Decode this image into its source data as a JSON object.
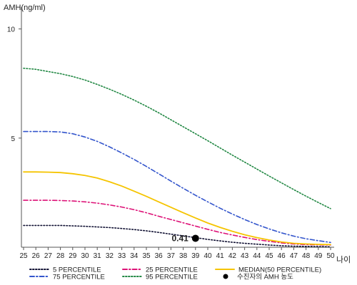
{
  "chart_data": {
    "type": "line",
    "ylabel": "AMH(ng/ml)",
    "xlabel": "나이",
    "x": [
      25,
      26,
      27,
      28,
      29,
      30,
      31,
      32,
      33,
      34,
      35,
      36,
      37,
      38,
      39,
      40,
      41,
      42,
      43,
      44,
      45,
      46,
      47,
      48,
      49,
      50
    ],
    "xlim": [
      25,
      50
    ],
    "ylim": [
      0,
      11
    ],
    "yticks": [
      5,
      10
    ],
    "grid": false,
    "legend_position": "bottom",
    "series": [
      {
        "name": "5 PERCENTILE",
        "color": "#111133",
        "dash": "dotted",
        "values": [
          1.0,
          1.0,
          1.0,
          1.0,
          0.98,
          0.96,
          0.93,
          0.9,
          0.86,
          0.81,
          0.75,
          0.68,
          0.6,
          0.52,
          0.44,
          0.36,
          0.29,
          0.23,
          0.18,
          0.14,
          0.1,
          0.07,
          0.05,
          0.04,
          0.03,
          0.02
        ]
      },
      {
        "name": "25 PERCENTILE",
        "color": "#dd1177",
        "dash": "dashdot",
        "values": [
          2.15,
          2.15,
          2.15,
          2.14,
          2.12,
          2.08,
          2.02,
          1.94,
          1.84,
          1.72,
          1.58,
          1.42,
          1.27,
          1.12,
          0.97,
          0.82,
          0.68,
          0.56,
          0.45,
          0.35,
          0.27,
          0.2,
          0.15,
          0.12,
          0.11,
          0.1
        ]
      },
      {
        "name": "MEDIAN(50 PERCENTILE)",
        "color": "#f5c400",
        "dash": "solid",
        "values": [
          3.45,
          3.45,
          3.44,
          3.42,
          3.37,
          3.29,
          3.17,
          3.0,
          2.8,
          2.57,
          2.33,
          2.08,
          1.83,
          1.58,
          1.34,
          1.11,
          0.91,
          0.73,
          0.57,
          0.44,
          0.33,
          0.24,
          0.18,
          0.15,
          0.13,
          0.12
        ]
      },
      {
        "name": "75 PERCENTILE",
        "color": "#3355cc",
        "dash": "dashdot",
        "values": [
          5.3,
          5.3,
          5.3,
          5.28,
          5.2,
          5.05,
          4.85,
          4.6,
          4.32,
          4.02,
          3.7,
          3.37,
          3.03,
          2.7,
          2.38,
          2.08,
          1.79,
          1.52,
          1.27,
          1.04,
          0.84,
          0.66,
          0.51,
          0.39,
          0.3,
          0.22
        ]
      },
      {
        "name": "95 PERCENTILE",
        "color": "#228844",
        "dash": "dotted",
        "values": [
          8.2,
          8.15,
          8.05,
          7.95,
          7.82,
          7.66,
          7.46,
          7.24,
          7.0,
          6.74,
          6.46,
          6.16,
          5.84,
          5.52,
          5.2,
          4.88,
          4.55,
          4.22,
          3.9,
          3.58,
          3.26,
          2.95,
          2.64,
          2.34,
          2.05,
          1.77
        ]
      }
    ],
    "marker": {
      "name": "수진자의 AMH 농도",
      "x": 39,
      "y": 0.41,
      "label": "0.41",
      "color": "#000000"
    }
  }
}
